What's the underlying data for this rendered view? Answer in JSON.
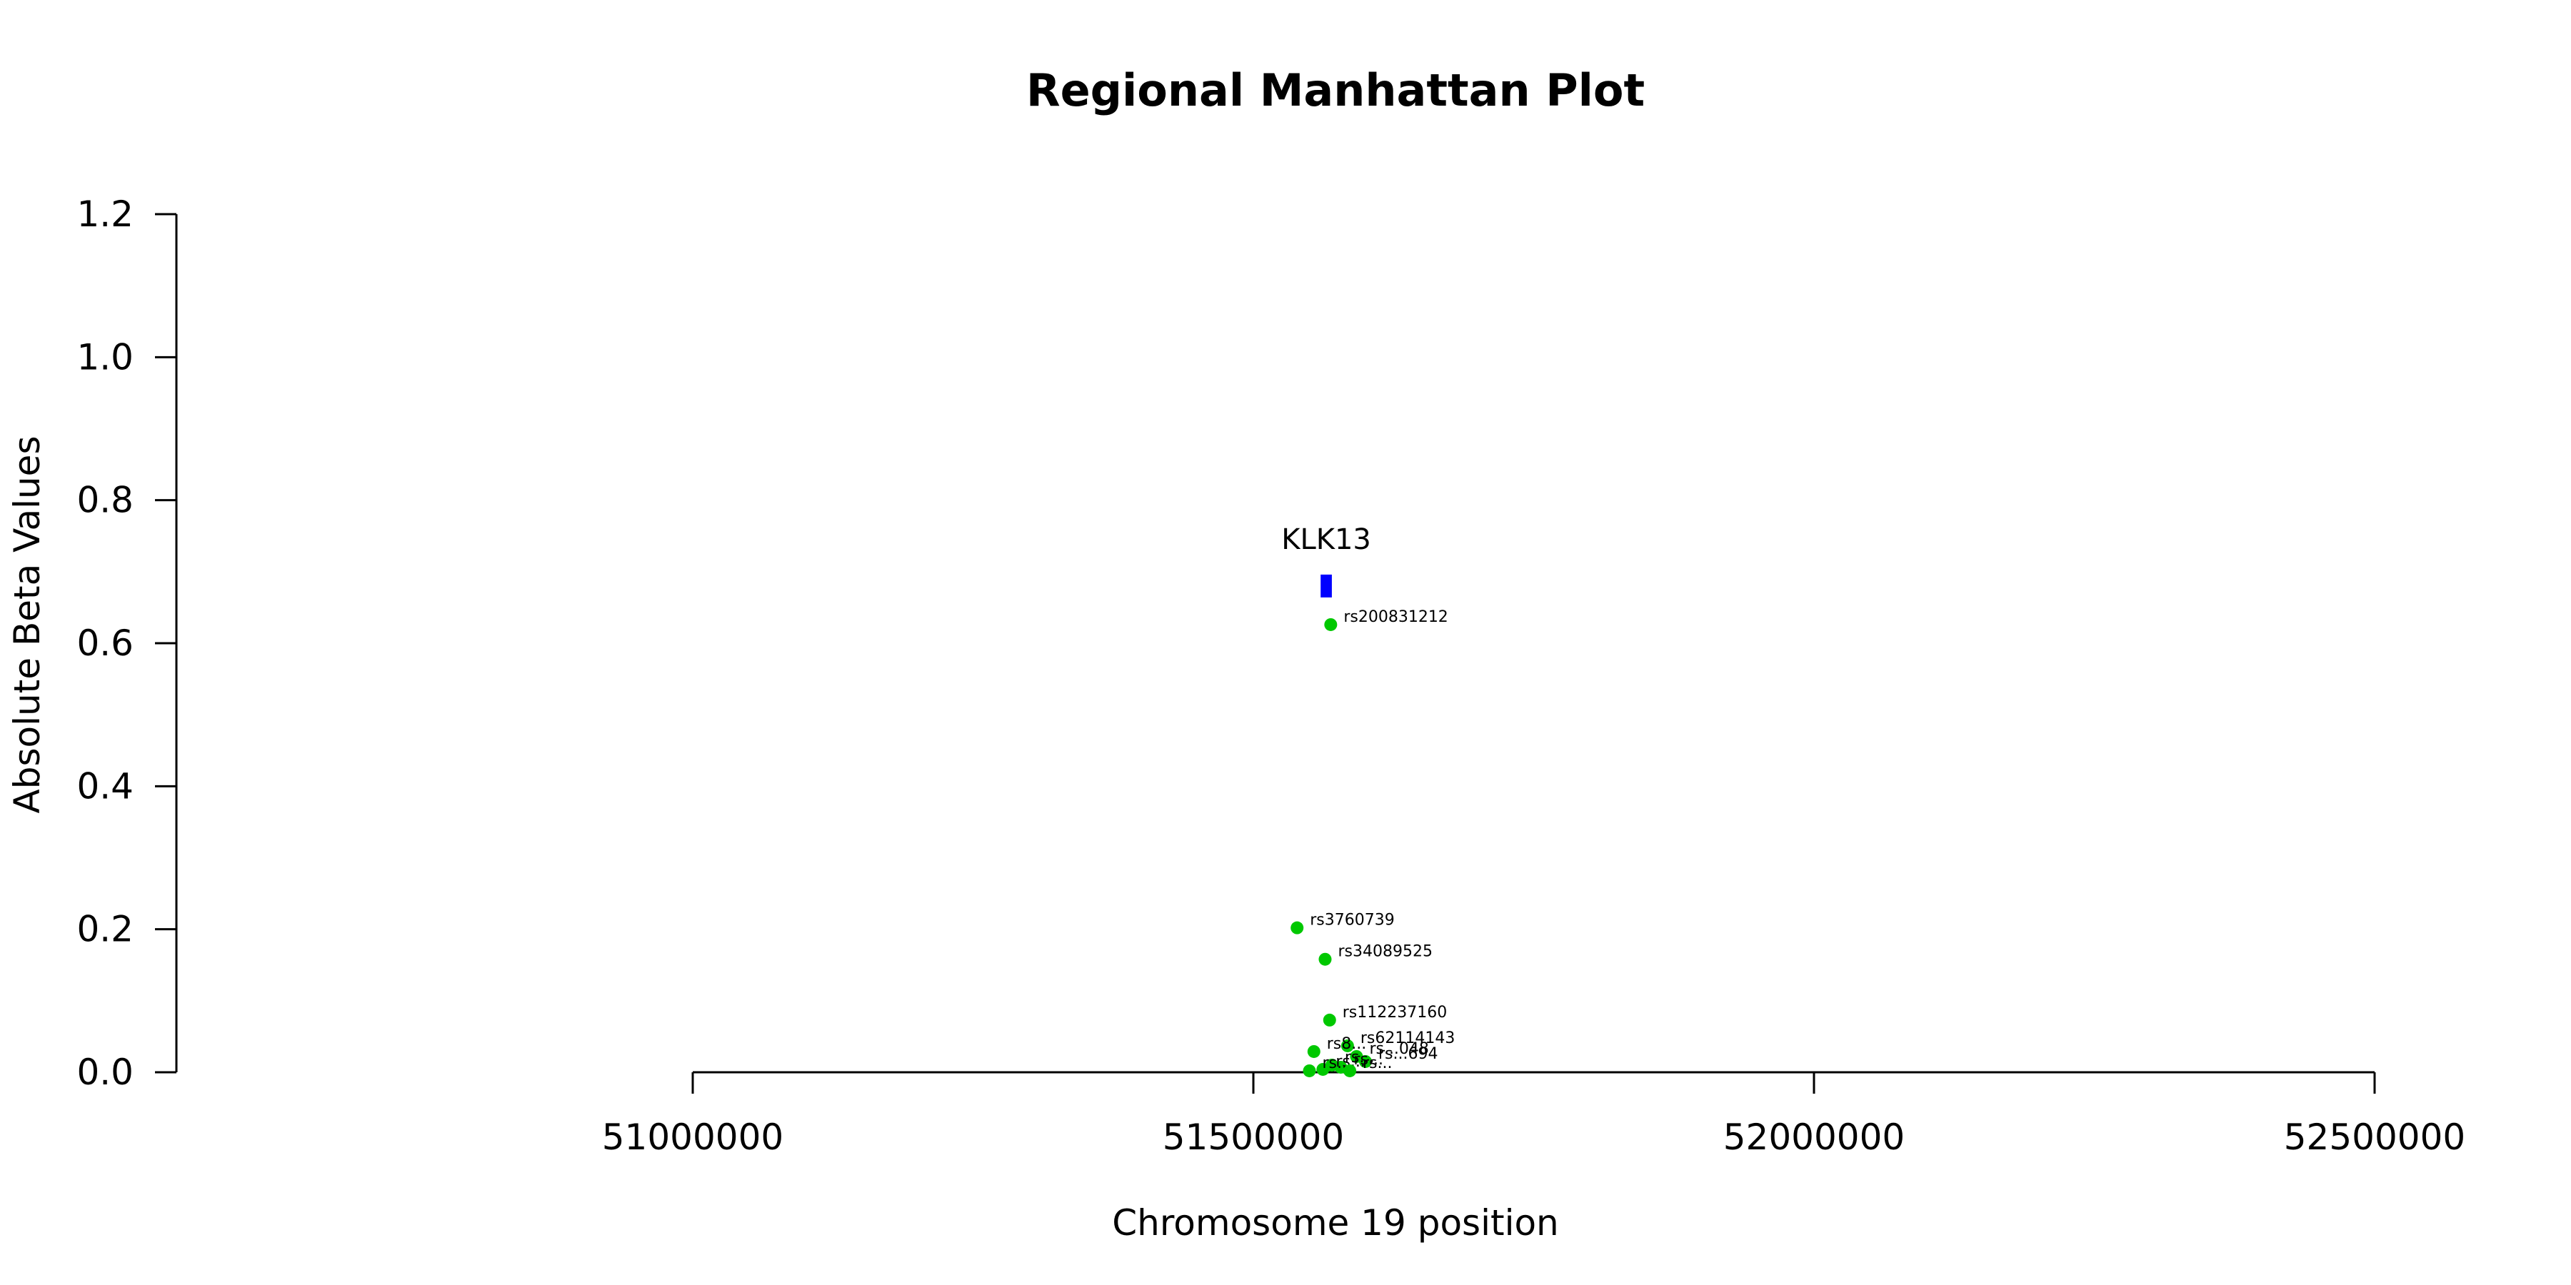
{
  "chart_data": {
    "type": "scatter",
    "title": "Regional Manhattan Plot",
    "xlabel": "Chromosome 19 position",
    "ylabel": "Absolute Beta Values",
    "xlim": [
      51000000,
      52500000
    ],
    "ylim": [
      0,
      1.2
    ],
    "x_ticks": [
      "51000000",
      "51500000",
      "52000000",
      "52500000"
    ],
    "y_ticks": [
      "0.0",
      "0.2",
      "0.4",
      "0.6",
      "0.8",
      "1.0",
      "1.2"
    ],
    "grid": false,
    "colors": {
      "points": "#00c800",
      "gene": "#0000ff"
    },
    "gene": {
      "name": "KLK13",
      "start": 51560000,
      "end": 51570000,
      "y": 0.68
    },
    "points": [
      {
        "label": "rs200831212",
        "x": 51569000,
        "y": 0.626
      },
      {
        "label": "rs3760739",
        "x": 51539000,
        "y": 0.202
      },
      {
        "label": "rs34089525",
        "x": 51564000,
        "y": 0.158
      },
      {
        "label": "rs112237160",
        "x": 51568000,
        "y": 0.073
      },
      {
        "label": "rs62114143",
        "x": 51584000,
        "y": 0.037
      },
      {
        "label": "rs8...",
        "x": 51554000,
        "y": 0.029
      },
      {
        "label": "rs...048",
        "x": 51592000,
        "y": 0.022
      },
      {
        "label": "rs...694",
        "x": 51600000,
        "y": 0.015
      },
      {
        "label": "rs...",
        "x": 51570000,
        "y": 0.01
      },
      {
        "label": "rs...",
        "x": 51578000,
        "y": 0.007
      },
      {
        "label": "rs...",
        "x": 51562000,
        "y": 0.004
      },
      {
        "label": "rs...",
        "x": 51550000,
        "y": 0.002
      },
      {
        "label": "rs...",
        "x": 51586000,
        "y": 0.002
      }
    ]
  }
}
